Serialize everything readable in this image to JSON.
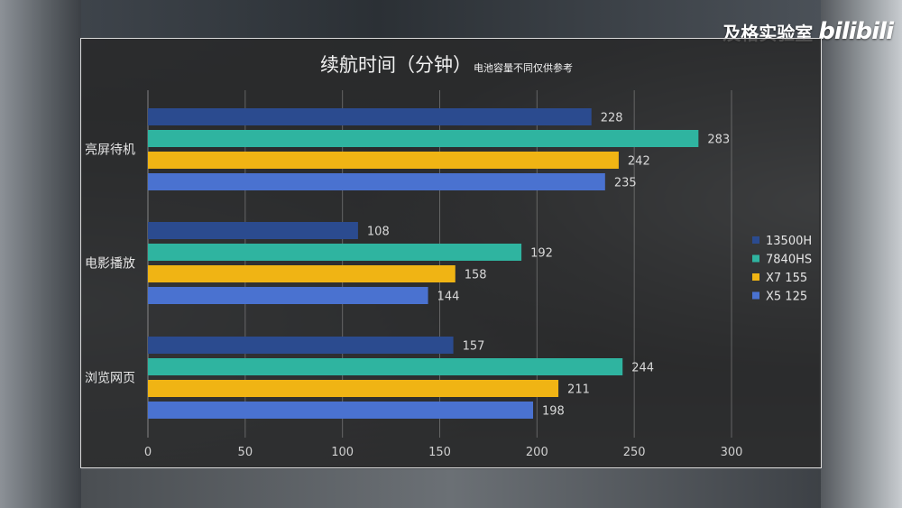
{
  "watermark": {
    "channel": "及格实验室",
    "logo": "bilibili"
  },
  "chart_data": {
    "type": "bar",
    "orientation": "horizontal",
    "title": "续航时间（分钟）",
    "subtitle": "电池容量不同仅供参考",
    "categories": [
      "亮屏待机",
      "电影播放",
      "浏览网页"
    ],
    "series": [
      {
        "name": "13500H",
        "color": "#2b4b8f",
        "values": [
          228,
          108,
          157
        ]
      },
      {
        "name": "7840HS",
        "color": "#2fb4a0",
        "values": [
          283,
          192,
          244
        ]
      },
      {
        "name": "X7 155",
        "color": "#f0b414",
        "values": [
          242,
          158,
          211
        ]
      },
      {
        "name": "X5 125",
        "color": "#4a72d0",
        "values": [
          235,
          144,
          198
        ]
      }
    ],
    "xlim": [
      0,
      300
    ],
    "xticks": [
      0,
      50,
      100,
      150,
      200,
      250,
      300
    ],
    "grid": true,
    "legend_position": "right"
  }
}
